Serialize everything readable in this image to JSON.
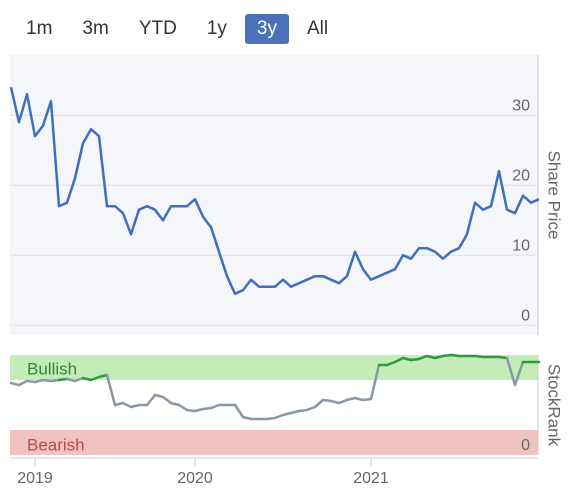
{
  "range_buttons": {
    "options": [
      "1m",
      "3m",
      "YTD",
      "1y",
      "3y",
      "All"
    ],
    "selected": 4
  },
  "chart_data": [
    {
      "type": "line",
      "y_axis_label": "Share Price",
      "color": "#3f6fbe",
      "ylim": [
        -1.4,
        38.6
      ],
      "yticks": [
        0,
        10,
        20,
        30
      ],
      "grid": true,
      "values": [
        34,
        29,
        33,
        27,
        28.5,
        32,
        17,
        17.5,
        21,
        26,
        28,
        27,
        17,
        17,
        16,
        13,
        16.5,
        17,
        16.5,
        15,
        17,
        17,
        17,
        18,
        15.5,
        14,
        10.5,
        7,
        4.5,
        5,
        6.5,
        5.5,
        5.5,
        5.5,
        6.5,
        5.5,
        6,
        6.5,
        7,
        7,
        6.5,
        6,
        7,
        10.5,
        8,
        6.5,
        7,
        7.5,
        8,
        10,
        9.5,
        11,
        11,
        10.5,
        9.5,
        10.5,
        11,
        13,
        17.5,
        16.5,
        17,
        22,
        16.5,
        16,
        18.5,
        17.5,
        18
      ]
    },
    {
      "type": "line",
      "y_axis_label": "StockRank",
      "color": "#8a97a6",
      "highlight_color": "#2e9a3a",
      "band_labels": [
        "Bullish",
        "Bearish"
      ],
      "ylim": [
        0,
        100
      ],
      "yticks": [
        0
      ],
      "categories": [
        null,
        null,
        null,
        "2019",
        null,
        null,
        null,
        null,
        null,
        null,
        null,
        null,
        null,
        null,
        null,
        null,
        null,
        null,
        null,
        null,
        null,
        null,
        null,
        "2020",
        null,
        null,
        null,
        null,
        null,
        null,
        null,
        null,
        null,
        null,
        null,
        null,
        null,
        null,
        null,
        null,
        null,
        null,
        null,
        null,
        null,
        "2021",
        null,
        null,
        null,
        null,
        null,
        null,
        null,
        null,
        null,
        null,
        null,
        null,
        null,
        null,
        null,
        null,
        null,
        null,
        null,
        null,
        null
      ],
      "values": [
        72,
        70,
        74,
        73,
        75,
        74,
        75,
        76,
        74,
        77,
        75,
        78,
        80,
        50,
        52,
        48,
        50,
        50,
        60,
        58,
        52,
        50,
        45,
        44,
        46,
        47,
        50,
        50,
        50,
        38,
        36,
        36,
        36,
        37,
        40,
        42,
        44,
        45,
        48,
        55,
        54,
        52,
        55,
        57,
        55,
        56,
        90,
        90,
        93,
        97,
        95,
        96,
        99,
        97,
        99,
        100,
        99,
        99,
        99,
        98,
        98,
        98,
        97,
        70,
        93,
        93,
        93
      ]
    }
  ]
}
